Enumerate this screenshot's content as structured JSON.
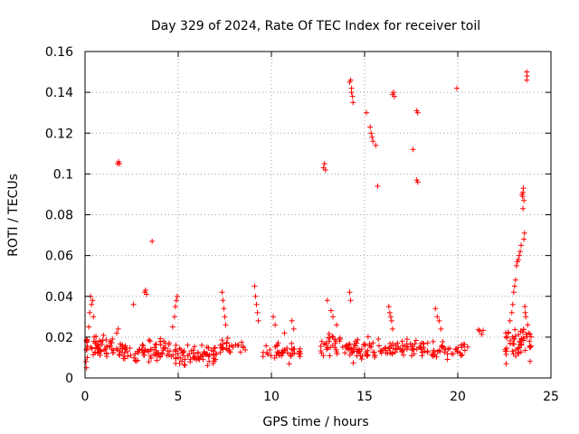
{
  "chart_data": {
    "type": "scatter",
    "title": "Day 329 of 2024, Rate Of TEC Index for receiver toil",
    "xlabel": "GPS time / hours",
    "ylabel": "ROTI / TECUs",
    "xlim": [
      0,
      25
    ],
    "ylim": [
      0,
      0.16
    ],
    "xticks": [
      0,
      5,
      10,
      15,
      20,
      25
    ],
    "xtick_labels": [
      "0",
      "5",
      "10",
      "15",
      "20",
      "25"
    ],
    "yticks": [
      0,
      0.02,
      0.04,
      0.06,
      0.08,
      0.1,
      0.12,
      0.14,
      0.16
    ],
    "ytick_labels": [
      "0",
      "0.02",
      "0.04",
      "0.06",
      "0.08",
      "0.1",
      "0.12",
      "0.14",
      "0.16"
    ],
    "grid": true,
    "marker": "+",
    "color": "#ff0000",
    "segments": [
      {
        "x0": 0.0,
        "x1": 1.6,
        "base": 0.015,
        "spread": 0.008,
        "n": 55
      },
      {
        "x0": 1.6,
        "x1": 3.2,
        "base": 0.013,
        "spread": 0.007,
        "n": 40
      },
      {
        "x0": 3.2,
        "x1": 4.6,
        "base": 0.014,
        "spread": 0.008,
        "n": 40
      },
      {
        "x0": 4.6,
        "x1": 7.3,
        "base": 0.012,
        "spread": 0.007,
        "n": 75
      },
      {
        "x0": 7.3,
        "x1": 8.6,
        "base": 0.015,
        "spread": 0.006,
        "n": 25
      },
      {
        "x0": 9.5,
        "x1": 11.6,
        "base": 0.013,
        "spread": 0.007,
        "n": 45
      },
      {
        "x0": 12.6,
        "x1": 14.2,
        "base": 0.016,
        "spread": 0.008,
        "n": 40
      },
      {
        "x0": 14.2,
        "x1": 16.6,
        "base": 0.013,
        "spread": 0.008,
        "n": 65
      },
      {
        "x0": 16.6,
        "x1": 18.4,
        "base": 0.015,
        "spread": 0.006,
        "n": 45
      },
      {
        "x0": 18.6,
        "x1": 20.6,
        "base": 0.014,
        "spread": 0.007,
        "n": 40
      },
      {
        "x0": 21.1,
        "x1": 21.4,
        "base": 0.023,
        "spread": 0.002,
        "n": 4
      },
      {
        "x0": 22.5,
        "x1": 24.0,
        "base": 0.018,
        "spread": 0.012,
        "n": 55
      }
    ],
    "points": [
      [
        0.05,
        0.008
      ],
      [
        0.08,
        0.005
      ],
      [
        0.12,
        0.01
      ],
      [
        0.2,
        0.025
      ],
      [
        0.25,
        0.032
      ],
      [
        0.3,
        0.04
      ],
      [
        0.35,
        0.036
      ],
      [
        0.4,
        0.038
      ],
      [
        0.45,
        0.03
      ],
      [
        1.75,
        0.105
      ],
      [
        1.8,
        0.106
      ],
      [
        1.85,
        0.105
      ],
      [
        1.7,
        0.022
      ],
      [
        1.78,
        0.024
      ],
      [
        2.6,
        0.036
      ],
      [
        3.2,
        0.042
      ],
      [
        3.25,
        0.043
      ],
      [
        3.3,
        0.041
      ],
      [
        3.6,
        0.067
      ],
      [
        4.7,
        0.025
      ],
      [
        4.8,
        0.03
      ],
      [
        4.85,
        0.035
      ],
      [
        4.9,
        0.038
      ],
      [
        4.95,
        0.04
      ],
      [
        7.35,
        0.042
      ],
      [
        7.4,
        0.038
      ],
      [
        7.45,
        0.034
      ],
      [
        7.5,
        0.03
      ],
      [
        7.55,
        0.026
      ],
      [
        9.1,
        0.045
      ],
      [
        9.15,
        0.04
      ],
      [
        9.2,
        0.036
      ],
      [
        9.25,
        0.032
      ],
      [
        9.3,
        0.028
      ],
      [
        10.1,
        0.03
      ],
      [
        10.2,
        0.026
      ],
      [
        10.7,
        0.022
      ],
      [
        11.1,
        0.028
      ],
      [
        11.2,
        0.024
      ],
      [
        12.8,
        0.103
      ],
      [
        12.85,
        0.105
      ],
      [
        12.9,
        0.102
      ],
      [
        13.0,
        0.038
      ],
      [
        13.2,
        0.033
      ],
      [
        13.3,
        0.03
      ],
      [
        13.5,
        0.026
      ],
      [
        14.2,
        0.145
      ],
      [
        14.25,
        0.146
      ],
      [
        14.3,
        0.14
      ],
      [
        14.35,
        0.138
      ],
      [
        14.38,
        0.135
      ],
      [
        14.3,
        0.142
      ],
      [
        14.2,
        0.042
      ],
      [
        14.25,
        0.038
      ],
      [
        15.1,
        0.13
      ],
      [
        15.3,
        0.123
      ],
      [
        15.35,
        0.12
      ],
      [
        15.4,
        0.118
      ],
      [
        15.45,
        0.116
      ],
      [
        15.6,
        0.114
      ],
      [
        15.7,
        0.094
      ],
      [
        16.3,
        0.035
      ],
      [
        16.35,
        0.032
      ],
      [
        16.4,
        0.03
      ],
      [
        16.45,
        0.028
      ],
      [
        16.5,
        0.024
      ],
      [
        16.5,
        0.139
      ],
      [
        16.55,
        0.14
      ],
      [
        16.6,
        0.138
      ],
      [
        17.6,
        0.112
      ],
      [
        17.8,
        0.131
      ],
      [
        17.85,
        0.13
      ],
      [
        17.8,
        0.097
      ],
      [
        17.85,
        0.096
      ],
      [
        18.8,
        0.034
      ],
      [
        18.9,
        0.03
      ],
      [
        19.0,
        0.028
      ],
      [
        19.1,
        0.024
      ],
      [
        19.95,
        0.142
      ],
      [
        22.6,
        0.007
      ],
      [
        22.8,
        0.028
      ],
      [
        22.9,
        0.032
      ],
      [
        22.95,
        0.036
      ],
      [
        23.0,
        0.042
      ],
      [
        23.05,
        0.045
      ],
      [
        23.1,
        0.048
      ],
      [
        23.15,
        0.055
      ],
      [
        23.2,
        0.057
      ],
      [
        23.25,
        0.058
      ],
      [
        23.3,
        0.06
      ],
      [
        23.35,
        0.062
      ],
      [
        23.4,
        0.065
      ],
      [
        23.45,
        0.09
      ],
      [
        23.5,
        0.091
      ],
      [
        23.52,
        0.093
      ],
      [
        23.48,
        0.089
      ],
      [
        23.55,
        0.087
      ],
      [
        23.5,
        0.083
      ],
      [
        23.55,
        0.068
      ],
      [
        23.58,
        0.071
      ],
      [
        23.6,
        0.035
      ],
      [
        23.62,
        0.032
      ],
      [
        23.65,
        0.03
      ],
      [
        23.7,
        0.15
      ],
      [
        23.72,
        0.148
      ],
      [
        23.7,
        0.146
      ],
      [
        23.75,
        0.026
      ],
      [
        23.8,
        0.022
      ],
      [
        23.85,
        0.018
      ],
      [
        23.9,
        0.015
      ]
    ]
  }
}
